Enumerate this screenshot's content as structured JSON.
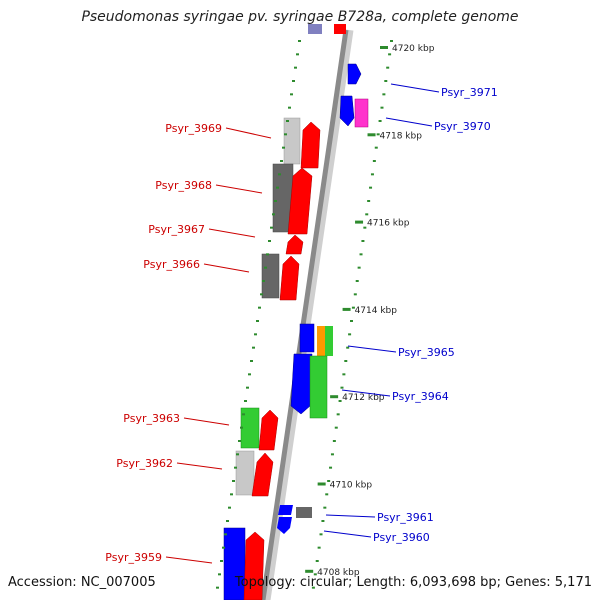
{
  "title": "Pseudomonas syringae pv. syringae B728a, complete genome",
  "accession": "Accession: NC_007005",
  "summary": "Topology: circular; Length: 6,093,698 bp; Genes: 5,171",
  "colors": {
    "red": "#ff0000",
    "blue": "#0000ff",
    "dark_gray": "#666666",
    "light_gray": "#c8c8c8",
    "green": "#33cc33",
    "orange": "#ff9900",
    "magenta": "#ff33cc",
    "slate": "#8080c0",
    "tick_green": "#2e8b2e",
    "label_red": "#cc0000",
    "label_blue": "#0000cc"
  },
  "scale_ticks": [
    {
      "label": "4720 kbp",
      "kbp": 4720
    },
    {
      "label": "4718 kbp",
      "kbp": 4718
    },
    {
      "label": "4716 kbp",
      "kbp": 4716
    },
    {
      "label": "4714 kbp",
      "kbp": 4714
    },
    {
      "label": "4712 kbp",
      "kbp": 4712
    },
    {
      "label": "4710 kbp",
      "kbp": 4710
    },
    {
      "label": "4708 kbp",
      "kbp": 4708
    }
  ],
  "left_labels": [
    "Psyr_3969",
    "Psyr_3968",
    "Psyr_3967",
    "Psyr_3966",
    "Psyr_3963",
    "Psyr_3962",
    "Psyr_3959"
  ],
  "right_labels": [
    "Psyr_3971",
    "Psyr_3970",
    "Psyr_3965",
    "Psyr_3964",
    "Psyr_3961",
    "Psyr_3960"
  ]
}
